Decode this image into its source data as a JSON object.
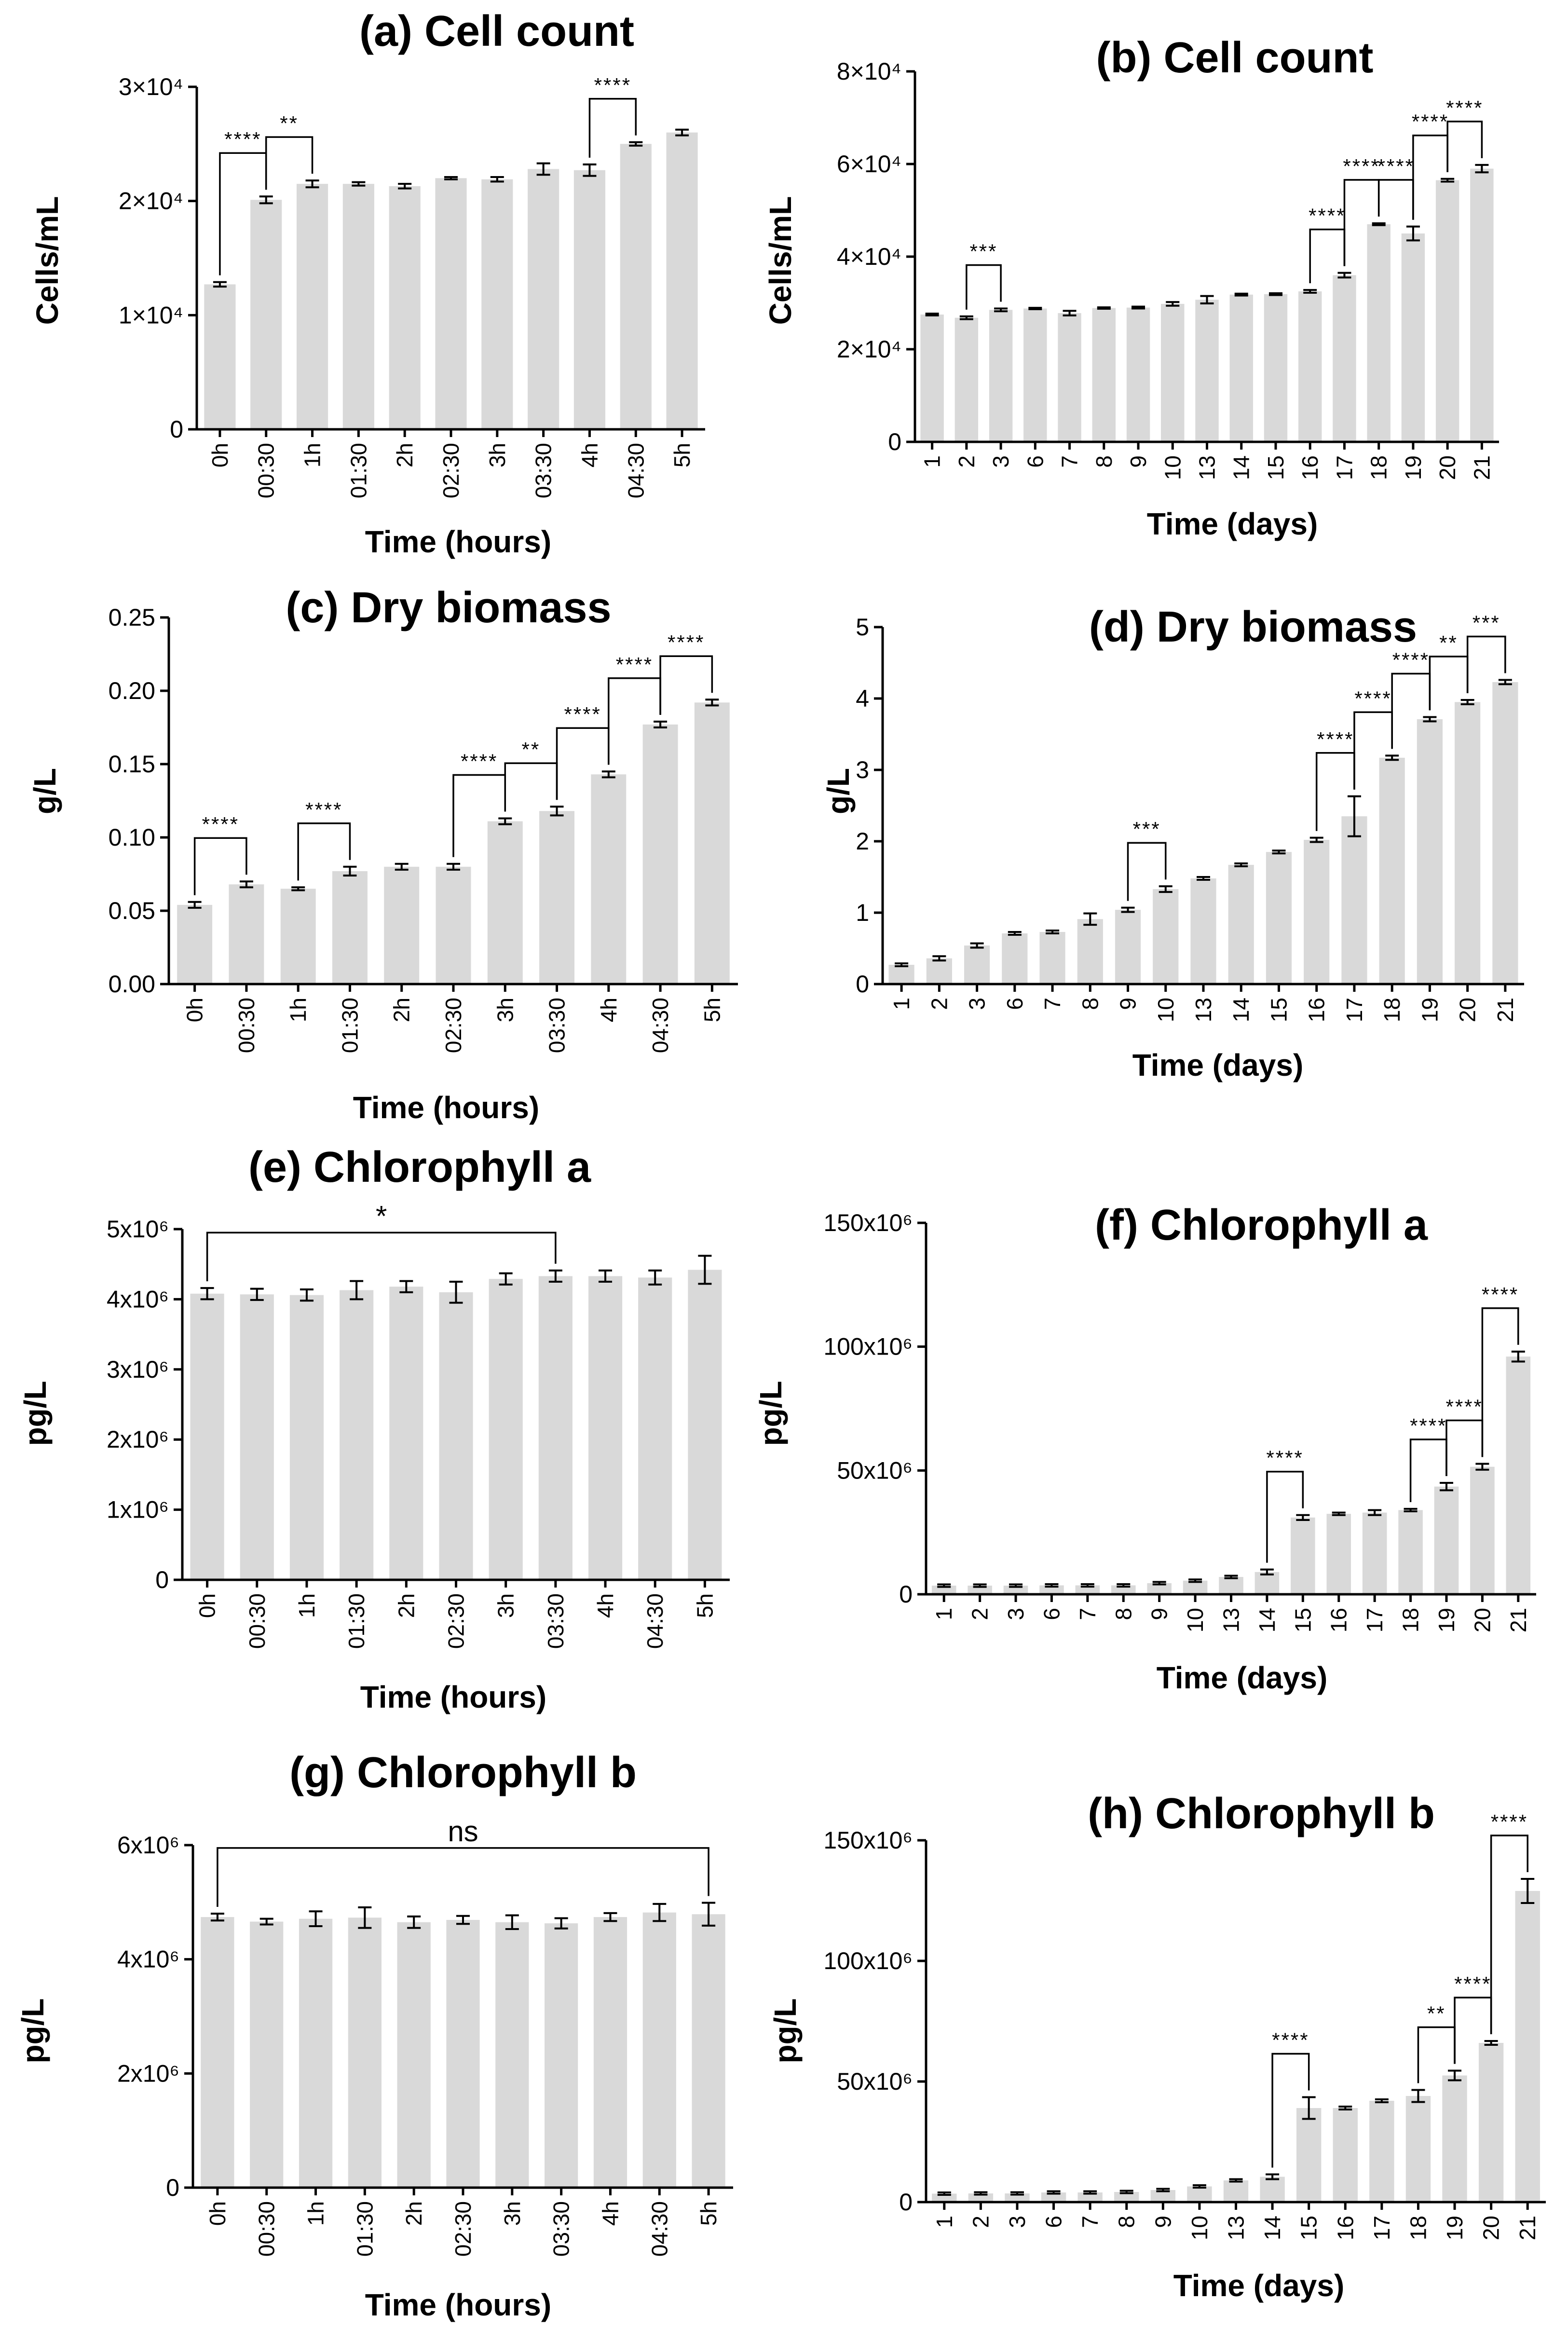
{
  "chart_data": [
    {
      "id": "a",
      "type": "bar",
      "title": "(a) Cell count",
      "xlabel": "Time (hours)",
      "ylabel": "Cells/mL",
      "categories": [
        "0h",
        "00:30",
        "1h",
        "01:30",
        "2h",
        "02:30",
        "3h",
        "03:30",
        "4h",
        "04:30",
        "5h"
      ],
      "values": [
        12700,
        20100,
        21500,
        21500,
        21300,
        22000,
        21900,
        22800,
        22700,
        25000,
        26000
      ],
      "errors": [
        200,
        300,
        300,
        150,
        200,
        100,
        200,
        500,
        500,
        150,
        250
      ],
      "ylim": [
        0,
        30000
      ],
      "yticks": [
        {
          "v": 0,
          "label": "0"
        },
        {
          "v": 10000,
          "label": "1×10⁴"
        },
        {
          "v": 20000,
          "label": "2×10⁴"
        },
        {
          "v": 30000,
          "label": "3×10⁴"
        }
      ],
      "significance": [
        {
          "from": 0,
          "to": 1,
          "label": "****"
        },
        {
          "from": 1,
          "to": 2,
          "label": "**"
        },
        {
          "from": 8,
          "to": 9,
          "label": "****"
        }
      ]
    },
    {
      "id": "b",
      "type": "bar",
      "title": "(b) Cell count",
      "xlabel": "Time (days)",
      "ylabel": "Cells/mL",
      "categories": [
        "1",
        "2",
        "3",
        "6",
        "7",
        "8",
        "9",
        "10",
        "13",
        "14",
        "15",
        "16",
        "17",
        "18",
        "19",
        "20",
        "21"
      ],
      "values": [
        27500,
        26800,
        28500,
        28800,
        27800,
        28900,
        29000,
        29800,
        30700,
        31800,
        31900,
        32500,
        36000,
        47000,
        45000,
        56500,
        59000
      ],
      "errors": [
        200,
        300,
        300,
        150,
        500,
        150,
        200,
        400,
        800,
        200,
        200,
        300,
        500,
        200,
        1500,
        300,
        800
      ],
      "ylim": [
        0,
        80000
      ],
      "yticks": [
        {
          "v": 0,
          "label": "0"
        },
        {
          "v": 20000,
          "label": "2×10⁴"
        },
        {
          "v": 40000,
          "label": "4×10⁴"
        },
        {
          "v": 60000,
          "label": "6×10⁴"
        },
        {
          "v": 80000,
          "label": "8×10⁴"
        }
      ],
      "significance": [
        {
          "from": 1,
          "to": 2,
          "label": "***"
        },
        {
          "from": 11,
          "to": 12,
          "label": "****"
        },
        {
          "from": 12,
          "to": 13,
          "label": "****"
        },
        {
          "from": 13,
          "to": 14,
          "label": "****"
        },
        {
          "from": 14,
          "to": 15,
          "label": "****"
        },
        {
          "from": 15,
          "to": 16,
          "label": "****"
        }
      ]
    },
    {
      "id": "c",
      "type": "bar",
      "title": "(c) Dry biomass",
      "xlabel": "Time (hours)",
      "ylabel": "g/L",
      "categories": [
        "0h",
        "00:30",
        "1h",
        "01:30",
        "2h",
        "02:30",
        "3h",
        "03:30",
        "4h",
        "04:30",
        "5h"
      ],
      "values": [
        0.054,
        0.068,
        0.065,
        0.077,
        0.08,
        0.08,
        0.111,
        0.118,
        0.143,
        0.177,
        0.192
      ],
      "errors": [
        0.002,
        0.002,
        0.001,
        0.003,
        0.002,
        0.002,
        0.002,
        0.003,
        0.002,
        0.002,
        0.002
      ],
      "ylim": [
        0,
        0.25
      ],
      "yticks": [
        {
          "v": 0,
          "label": "0.00"
        },
        {
          "v": 0.05,
          "label": "0.05"
        },
        {
          "v": 0.1,
          "label": "0.10"
        },
        {
          "v": 0.15,
          "label": "0.15"
        },
        {
          "v": 0.2,
          "label": "0.20"
        },
        {
          "v": 0.25,
          "label": "0.25"
        }
      ],
      "significance": [
        {
          "from": 0,
          "to": 1,
          "label": "****"
        },
        {
          "from": 2,
          "to": 3,
          "label": "****"
        },
        {
          "from": 5,
          "to": 6,
          "label": "****"
        },
        {
          "from": 6,
          "to": 7,
          "label": "**"
        },
        {
          "from": 7,
          "to": 8,
          "label": "****"
        },
        {
          "from": 8,
          "to": 9,
          "label": "****"
        },
        {
          "from": 9,
          "to": 10,
          "label": "****"
        }
      ]
    },
    {
      "id": "d",
      "type": "bar",
      "title": "(d) Dry biomass",
      "xlabel": "Time (days)",
      "ylabel": "g/L",
      "categories": [
        "1",
        "2",
        "3",
        "6",
        "7",
        "8",
        "9",
        "10",
        "13",
        "14",
        "15",
        "16",
        "17",
        "18",
        "19",
        "20",
        "21"
      ],
      "values": [
        0.27,
        0.36,
        0.54,
        0.71,
        0.73,
        0.91,
        1.04,
        1.33,
        1.48,
        1.67,
        1.85,
        2.02,
        2.35,
        3.17,
        3.71,
        3.95,
        4.23
      ],
      "errors": [
        0.02,
        0.03,
        0.03,
        0.02,
        0.02,
        0.08,
        0.03,
        0.04,
        0.02,
        0.02,
        0.02,
        0.03,
        0.28,
        0.03,
        0.03,
        0.03,
        0.03
      ],
      "ylim": [
        0,
        5
      ],
      "yticks": [
        {
          "v": 0,
          "label": "0"
        },
        {
          "v": 1,
          "label": "1"
        },
        {
          "v": 2,
          "label": "2"
        },
        {
          "v": 3,
          "label": "3"
        },
        {
          "v": 4,
          "label": "4"
        },
        {
          "v": 5,
          "label": "5"
        }
      ],
      "significance": [
        {
          "from": 6,
          "to": 7,
          "label": "***"
        },
        {
          "from": 11,
          "to": 12,
          "label": "****"
        },
        {
          "from": 12,
          "to": 13,
          "label": "****"
        },
        {
          "from": 13,
          "to": 14,
          "label": "****"
        },
        {
          "from": 14,
          "to": 15,
          "label": "**"
        },
        {
          "from": 15,
          "to": 16,
          "label": "***"
        }
      ]
    },
    {
      "id": "e",
      "type": "bar",
      "title": "(e) Chlorophyll a",
      "xlabel": "Time (hours)",
      "ylabel": "pg/L",
      "categories": [
        "0h",
        "00:30",
        "1h",
        "01:30",
        "2h",
        "02:30",
        "3h",
        "03:30",
        "4h",
        "04:30",
        "5h"
      ],
      "values": [
        4080000,
        4070000,
        4060000,
        4130000,
        4180000,
        4100000,
        4290000,
        4330000,
        4330000,
        4310000,
        4420000
      ],
      "errors": [
        80000,
        80000,
        80000,
        130000,
        80000,
        150000,
        80000,
        80000,
        80000,
        100000,
        200000
      ],
      "ylim": [
        0,
        5000000
      ],
      "yticks": [
        {
          "v": 0,
          "label": "0"
        },
        {
          "v": 1000000,
          "label": "1x10⁶"
        },
        {
          "v": 2000000,
          "label": "2x10⁶"
        },
        {
          "v": 3000000,
          "label": "3x10⁶"
        },
        {
          "v": 4000000,
          "label": "4x10⁶"
        },
        {
          "v": 5000000,
          "label": "5x10⁶"
        }
      ],
      "significance": [
        {
          "from": 0,
          "to": 7,
          "label": "*",
          "top": 4950000
        }
      ]
    },
    {
      "id": "f",
      "type": "bar",
      "title": "(f) Chlorophyll a",
      "xlabel": "Time (days)",
      "ylabel": "pg/L",
      "categories": [
        "1",
        "2",
        "3",
        "6",
        "7",
        "8",
        "9",
        "10",
        "13",
        "14",
        "15",
        "16",
        "17",
        "18",
        "19",
        "20",
        "21"
      ],
      "values": [
        3500000,
        3500000,
        3500000,
        3600000,
        3600000,
        3600000,
        4500000,
        5500000,
        7000000,
        9000000,
        31000000,
        32500000,
        33000000,
        34000000,
        43500000,
        51500000,
        96000000
      ],
      "errors": [
        500000,
        500000,
        500000,
        500000,
        500000,
        500000,
        500000,
        500000,
        500000,
        1000000,
        1000000,
        500000,
        1000000,
        500000,
        1500000,
        1200000,
        2000000
      ],
      "ylim": [
        0,
        150000000
      ],
      "yticks": [
        {
          "v": 0,
          "label": "0"
        },
        {
          "v": 50000000,
          "label": "50x10⁶"
        },
        {
          "v": 100000000,
          "label": "100x10⁶"
        },
        {
          "v": 150000000,
          "label": "150x10⁶"
        }
      ],
      "significance": [
        {
          "from": 9,
          "to": 10,
          "label": "****"
        },
        {
          "from": 13,
          "to": 14,
          "label": "****"
        },
        {
          "from": 14,
          "to": 15,
          "label": "****"
        },
        {
          "from": 15,
          "to": 16,
          "label": "****"
        }
      ]
    },
    {
      "id": "g",
      "type": "bar",
      "title": "(g) Chlorophyll b",
      "xlabel": "Time (hours)",
      "ylabel": "pg/L",
      "categories": [
        "0h",
        "00:30",
        "1h",
        "01:30",
        "2h",
        "02:30",
        "3h",
        "03:30",
        "4h",
        "04:30",
        "5h"
      ],
      "values": [
        4740000,
        4660000,
        4710000,
        4730000,
        4650000,
        4690000,
        4650000,
        4630000,
        4740000,
        4820000,
        4790000
      ],
      "errors": [
        60000,
        50000,
        130000,
        180000,
        100000,
        70000,
        120000,
        90000,
        70000,
        150000,
        200000
      ],
      "ylim": [
        0,
        6000000
      ],
      "yticks": [
        {
          "v": 0,
          "label": "0"
        },
        {
          "v": 2000000,
          "label": "2x10⁶"
        },
        {
          "v": 4000000,
          "label": "4x10⁶"
        },
        {
          "v": 6000000,
          "label": "6x10⁶"
        }
      ],
      "significance": [
        {
          "from": 0,
          "to": 10,
          "label": "ns",
          "top": 5950000
        }
      ]
    },
    {
      "id": "h",
      "type": "bar",
      "title": "(h) Chlorophyll b",
      "xlabel": "Time (days)",
      "ylabel": "pg/L",
      "categories": [
        "1",
        "2",
        "3",
        "6",
        "7",
        "8",
        "9",
        "10",
        "13",
        "14",
        "15",
        "16",
        "17",
        "18",
        "19",
        "20",
        "21"
      ],
      "values": [
        3500000,
        3600000,
        3600000,
        4000000,
        4000000,
        4200000,
        5000000,
        6500000,
        9000000,
        10500000,
        39000000,
        39000000,
        42000000,
        44000000,
        52500000,
        66000000,
        129000000
      ],
      "errors": [
        500000,
        500000,
        500000,
        500000,
        500000,
        500000,
        500000,
        500000,
        500000,
        1000000,
        4500000,
        600000,
        600000,
        2500000,
        2000000,
        800000,
        5000000
      ],
      "ylim": [
        0,
        150000000
      ],
      "yticks": [
        {
          "v": 0,
          "label": "0"
        },
        {
          "v": 50000000,
          "label": "50x10⁶"
        },
        {
          "v": 100000000,
          "label": "100x10⁶"
        },
        {
          "v": 150000000,
          "label": "150x10⁶"
        }
      ],
      "significance": [
        {
          "from": 9,
          "to": 10,
          "label": "****"
        },
        {
          "from": 13,
          "to": 14,
          "label": "**"
        },
        {
          "from": 14,
          "to": 15,
          "label": "****"
        },
        {
          "from": 15,
          "to": 16,
          "label": "****"
        }
      ]
    }
  ]
}
